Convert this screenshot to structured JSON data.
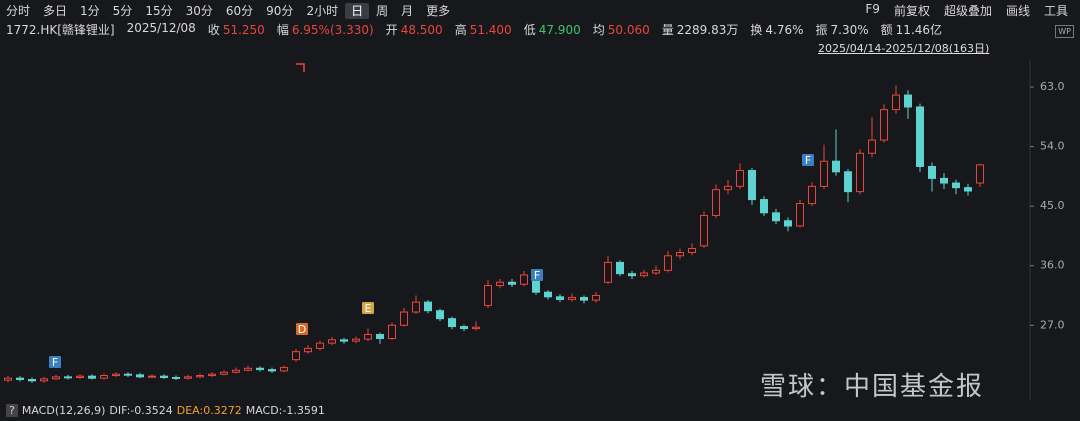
{
  "toolbar": {
    "periods": [
      "分时",
      "多日",
      "1分",
      "5分",
      "15分",
      "30分",
      "60分",
      "90分",
      "2小时",
      "日",
      "周",
      "月",
      "更多"
    ],
    "selected": 9,
    "tools": [
      "F9",
      "前复权",
      "超级叠加",
      "画线",
      "工具"
    ]
  },
  "quote": {
    "code": "1772.HK[赣锋锂业]",
    "date": "2025/12/08",
    "fields": [
      {
        "label": "收",
        "value": "51.250",
        "color": "#e8453c"
      },
      {
        "label": "幅",
        "value": "6.95%(3.330)",
        "color": "#e8453c"
      },
      {
        "label": "开",
        "value": "48.500",
        "color": "#e8453c"
      },
      {
        "label": "高",
        "value": "51.400",
        "color": "#e8453c"
      },
      {
        "label": "低",
        "value": "47.900",
        "color": "#3fc46a"
      },
      {
        "label": "均",
        "value": "50.060",
        "color": "#e8453c"
      },
      {
        "label": "量",
        "value": "2289.83万",
        "color": "#d8d8d8"
      },
      {
        "label": "换",
        "value": "4.76%",
        "color": "#d8d8d8"
      },
      {
        "label": "振",
        "value": "7.30%",
        "color": "#d8d8d8"
      },
      {
        "label": "额",
        "value": "11.46亿",
        "color": "#d8d8d8"
      }
    ]
  },
  "range": "2025/04/14-2025/12/08(163日)",
  "icon": "WP",
  "chart_data": {
    "type": "candlestick",
    "up_color": "#e8453c",
    "down_color": "#5fd3cf",
    "open": [
      18.7,
      19.0,
      18.8,
      18.6,
      18.9,
      19.2,
      19.1,
      19.3,
      19.0,
      19.4,
      19.6,
      19.5,
      19.2,
      19.3,
      19.1,
      19.0,
      19.2,
      19.4,
      19.6,
      19.9,
      20.2,
      20.5,
      20.3,
      20.1,
      21.8,
      23.0,
      23.5,
      24.3,
      24.8,
      24.6,
      24.9,
      25.6,
      25.0,
      27.0,
      29.0,
      30.5,
      29.2,
      28.0,
      26.8,
      26.5,
      30.0,
      33.0,
      33.5,
      33.2,
      34.6,
      32.0,
      31.3,
      30.9,
      31.2,
      30.8,
      33.5,
      36.5,
      34.8,
      34.5,
      34.9,
      35.3,
      37.5,
      38.0,
      39.0,
      43.6,
      47.5,
      48.0,
      50.4,
      46.0,
      44.0,
      42.8,
      42.0,
      45.4,
      48.0,
      51.8,
      50.2,
      47.2,
      53.0,
      55.0,
      59.6,
      61.8,
      60.0,
      51.0,
      49.2,
      48.5,
      47.8,
      48.5
    ],
    "high": [
      19.3,
      19.3,
      19.1,
      19.2,
      19.5,
      19.5,
      19.6,
      19.6,
      19.7,
      19.9,
      19.9,
      19.8,
      19.6,
      19.6,
      19.4,
      19.5,
      19.7,
      19.9,
      20.2,
      20.6,
      20.9,
      20.8,
      20.6,
      20.9,
      23.4,
      24.0,
      24.7,
      25.2,
      25.1,
      25.3,
      26.5,
      25.9,
      27.4,
      29.6,
      31.5,
      30.8,
      29.5,
      28.3,
      27.1,
      27.6,
      33.8,
      34.0,
      34.0,
      35.2,
      34.9,
      32.3,
      31.7,
      31.8,
      31.5,
      32.0,
      37.5,
      36.8,
      35.2,
      35.4,
      36.0,
      38.2,
      38.6,
      39.4,
      44.2,
      48.3,
      49.0,
      51.5,
      50.8,
      46.5,
      44.6,
      43.3,
      46.0,
      48.6,
      54.3,
      56.6,
      50.6,
      53.6,
      58.5,
      60.4,
      63.3,
      62.5,
      60.5,
      51.6,
      50.0,
      49.0,
      48.4,
      51.4
    ],
    "low": [
      18.4,
      18.5,
      18.3,
      18.3,
      18.7,
      18.8,
      18.9,
      18.8,
      18.8,
      19.2,
      19.2,
      19.0,
      19.0,
      18.9,
      18.7,
      18.8,
      19.0,
      19.2,
      19.4,
      19.7,
      20.0,
      20.0,
      19.8,
      19.9,
      21.5,
      22.7,
      23.2,
      24.0,
      24.2,
      24.3,
      24.6,
      24.2,
      24.8,
      26.8,
      28.7,
      28.8,
      27.6,
      26.4,
      26.1,
      26.2,
      29.6,
      32.6,
      32.8,
      32.9,
      31.6,
      30.9,
      30.5,
      30.6,
      30.3,
      30.4,
      33.2,
      34.4,
      34.0,
      34.2,
      34.6,
      35.0,
      37.0,
      37.6,
      38.7,
      43.2,
      46.8,
      47.6,
      45.2,
      43.5,
      42.3,
      41.2,
      41.8,
      45.0,
      47.6,
      49.6,
      45.6,
      46.8,
      52.4,
      54.6,
      59.0,
      58.2,
      50.2,
      47.2,
      47.6,
      46.8,
      46.6,
      47.9
    ],
    "close": [
      19.0,
      18.8,
      18.6,
      18.9,
      19.2,
      19.1,
      19.3,
      19.0,
      19.4,
      19.6,
      19.5,
      19.2,
      19.3,
      19.1,
      19.0,
      19.2,
      19.4,
      19.6,
      19.9,
      20.2,
      20.5,
      20.3,
      20.1,
      20.6,
      23.0,
      23.5,
      24.3,
      24.8,
      24.6,
      24.9,
      25.6,
      25.0,
      27.0,
      29.0,
      30.5,
      29.2,
      28.0,
      26.8,
      26.5,
      26.7,
      33.0,
      33.5,
      33.2,
      34.6,
      32.0,
      31.3,
      30.9,
      31.2,
      30.8,
      31.5,
      36.5,
      34.8,
      34.5,
      34.9,
      35.3,
      37.5,
      38.0,
      38.6,
      43.6,
      47.5,
      48.0,
      50.4,
      46.0,
      44.0,
      42.8,
      42.0,
      45.4,
      48.0,
      51.8,
      50.2,
      47.2,
      53.0,
      55.0,
      59.6,
      61.8,
      60.0,
      51.0,
      49.2,
      48.5,
      47.8,
      47.3,
      51.25
    ],
    "ylim": [
      15.7,
      67.1
    ],
    "yticks": [
      {
        "value": 27,
        "label": "27.0"
      },
      {
        "value": 36,
        "label": "36.0"
      },
      {
        "value": 45,
        "label": "45.0"
      },
      {
        "value": 54,
        "label": "54.0"
      },
      {
        "value": 63,
        "label": "63.0"
      }
    ],
    "markers": [
      "F",
      "D",
      "E",
      "F",
      "F"
    ]
  },
  "indicator": {
    "help": "?",
    "name": "MACD(12,26,9)",
    "dif": "DIF:-0.3524",
    "dea": "DEA:0.3272",
    "macd": "MACD:-1.3591"
  },
  "watermark": "雪球：中国基金报"
}
